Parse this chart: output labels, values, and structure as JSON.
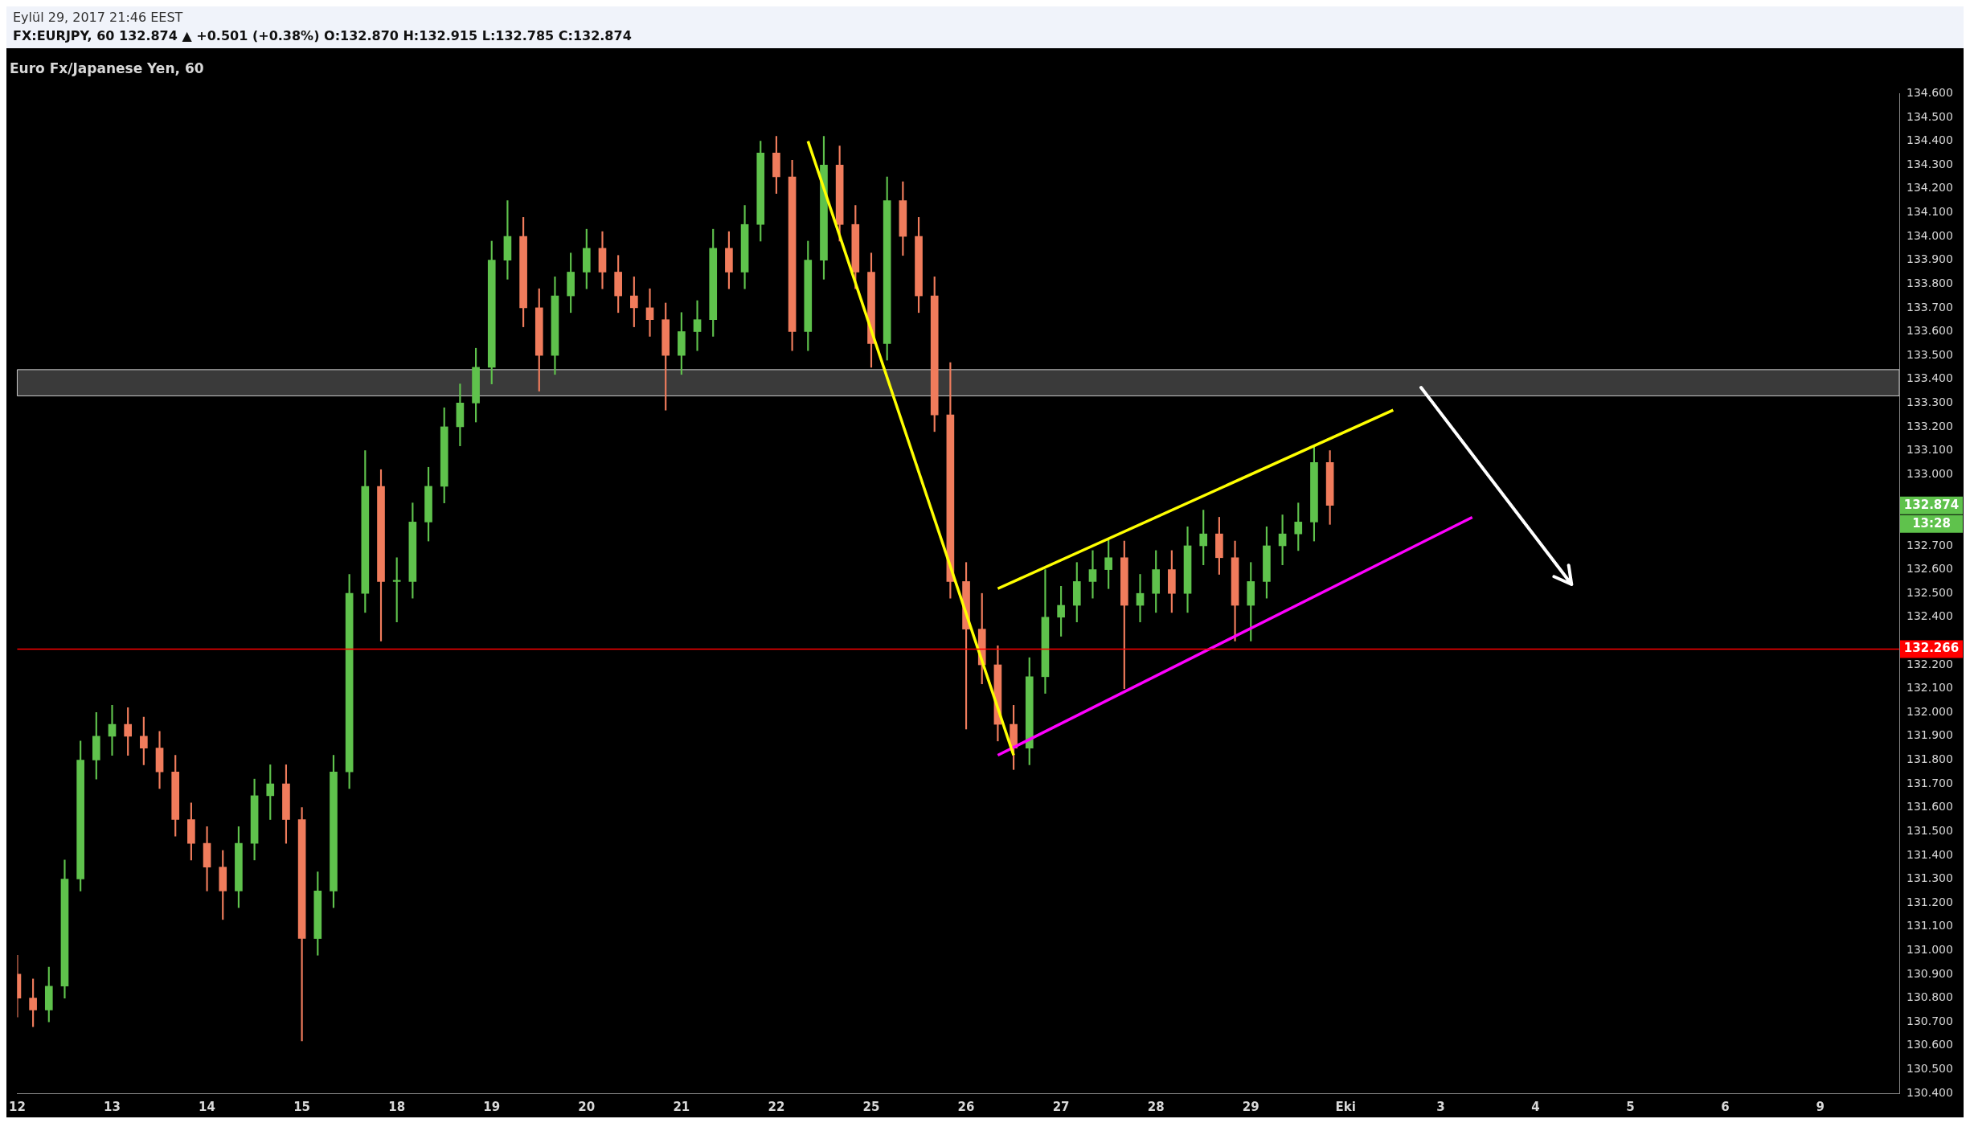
{
  "chart_data": {
    "type": "candlestick",
    "title": "Euro Fx/Japanese Yen, 60",
    "subtitle": "FX:EURJPY, 60  132.874 ▲ +0.501 (+0.38%) O:132.870 H:132.915 L:132.785 C:132.874",
    "annotations": [
      "Eylül 29, 2017 21:46 EEST",
      "132.874",
      "13:28"
    ],
    "categories": [
      "12",
      null,
      null,
      null,
      null,
      null,
      "13",
      null,
      null,
      null,
      null,
      null,
      "14",
      null,
      null,
      null,
      null,
      null,
      "15",
      null,
      null,
      null,
      null,
      null,
      "18",
      null,
      null,
      null,
      null,
      null,
      "19",
      null,
      null,
      null,
      null,
      null,
      "20",
      null,
      null,
      null,
      null,
      null,
      "21",
      null,
      null,
      null,
      null,
      null,
      "22",
      null,
      null,
      null,
      null,
      null,
      "25",
      null,
      null,
      null,
      null,
      null,
      "26",
      null,
      null,
      null,
      null,
      null,
      "27",
      null,
      null,
      null,
      null,
      null,
      "28",
      null,
      null,
      null,
      null,
      null,
      "29",
      null,
      null,
      null,
      null,
      null,
      "Eki",
      null,
      null,
      null,
      null,
      null,
      "3",
      null,
      null,
      null,
      null,
      null,
      "4",
      null,
      null,
      null,
      null,
      null,
      "5",
      null,
      null,
      null,
      null,
      null,
      "6",
      null,
      null,
      null,
      null,
      null,
      "9",
      null,
      null,
      null,
      null,
      null
    ],
    "ohlc": [
      [
        130.9,
        130.98,
        130.72,
        130.8
      ],
      [
        130.8,
        130.88,
        130.68,
        130.75
      ],
      [
        130.75,
        130.93,
        130.7,
        130.85
      ],
      [
        130.85,
        131.38,
        130.8,
        131.3
      ],
      [
        131.3,
        131.88,
        131.25,
        131.8
      ],
      [
        131.8,
        132.0,
        131.72,
        131.9
      ],
      [
        131.9,
        132.03,
        131.82,
        131.95
      ],
      [
        131.95,
        132.02,
        131.82,
        131.9
      ],
      [
        131.9,
        131.98,
        131.78,
        131.85
      ],
      [
        131.85,
        131.92,
        131.68,
        131.75
      ],
      [
        131.75,
        131.82,
        131.48,
        131.55
      ],
      [
        131.55,
        131.62,
        131.38,
        131.45
      ],
      [
        131.45,
        131.52,
        131.25,
        131.35
      ],
      [
        131.35,
        131.42,
        131.13,
        131.25
      ],
      [
        131.25,
        131.52,
        131.18,
        131.45
      ],
      [
        131.45,
        131.72,
        131.38,
        131.65
      ],
      [
        131.65,
        131.78,
        131.55,
        131.7
      ],
      [
        131.7,
        131.78,
        131.45,
        131.55
      ],
      [
        131.55,
        131.6,
        130.62,
        131.05
      ],
      [
        131.05,
        131.33,
        130.98,
        131.25
      ],
      [
        131.25,
        131.82,
        131.18,
        131.75
      ],
      [
        131.75,
        132.58,
        131.68,
        132.5
      ],
      [
        132.5,
        133.1,
        132.42,
        132.95
      ],
      [
        132.95,
        133.02,
        132.3,
        132.55
      ],
      [
        132.55,
        132.65,
        132.38,
        132.55
      ],
      [
        132.55,
        132.88,
        132.48,
        132.8
      ],
      [
        132.8,
        133.03,
        132.72,
        132.95
      ],
      [
        132.95,
        133.28,
        132.88,
        133.2
      ],
      [
        133.2,
        133.38,
        133.12,
        133.3
      ],
      [
        133.3,
        133.53,
        133.22,
        133.45
      ],
      [
        133.45,
        133.98,
        133.38,
        133.9
      ],
      [
        133.9,
        134.15,
        133.82,
        134.0
      ],
      [
        134.0,
        134.08,
        133.62,
        133.7
      ],
      [
        133.7,
        133.78,
        133.35,
        133.5
      ],
      [
        133.5,
        133.83,
        133.42,
        133.75
      ],
      [
        133.75,
        133.93,
        133.68,
        133.85
      ],
      [
        133.85,
        134.03,
        133.78,
        133.95
      ],
      [
        133.95,
        134.02,
        133.78,
        133.85
      ],
      [
        133.85,
        133.92,
        133.68,
        133.75
      ],
      [
        133.75,
        133.83,
        133.62,
        133.7
      ],
      [
        133.7,
        133.78,
        133.58,
        133.65
      ],
      [
        133.65,
        133.72,
        133.27,
        133.5
      ],
      [
        133.5,
        133.68,
        133.42,
        133.6
      ],
      [
        133.6,
        133.73,
        133.52,
        133.65
      ],
      [
        133.65,
        134.03,
        133.58,
        133.95
      ],
      [
        133.95,
        134.02,
        133.78,
        133.85
      ],
      [
        133.85,
        134.13,
        133.78,
        134.05
      ],
      [
        134.05,
        134.4,
        133.98,
        134.35
      ],
      [
        134.35,
        134.42,
        134.18,
        134.25
      ],
      [
        134.25,
        134.32,
        133.52,
        133.6
      ],
      [
        133.6,
        133.98,
        133.52,
        133.9
      ],
      [
        133.9,
        134.42,
        133.82,
        134.3
      ],
      [
        134.3,
        134.38,
        133.98,
        134.05
      ],
      [
        134.05,
        134.13,
        133.78,
        133.85
      ],
      [
        133.85,
        133.93,
        133.45,
        133.55
      ],
      [
        133.55,
        134.25,
        133.48,
        134.15
      ],
      [
        134.15,
        134.23,
        133.92,
        134.0
      ],
      [
        134.0,
        134.08,
        133.68,
        133.75
      ],
      [
        133.75,
        133.83,
        133.18,
        133.25
      ],
      [
        133.25,
        133.47,
        132.48,
        132.55
      ],
      [
        132.55,
        132.63,
        131.93,
        132.35
      ],
      [
        132.35,
        132.5,
        132.12,
        132.2
      ],
      [
        132.2,
        132.28,
        131.88,
        131.95
      ],
      [
        131.95,
        132.03,
        131.76,
        131.85
      ],
      [
        131.85,
        132.23,
        131.78,
        132.15
      ],
      [
        132.15,
        132.6,
        132.08,
        132.4
      ],
      [
        132.4,
        132.53,
        132.32,
        132.45
      ],
      [
        132.45,
        132.63,
        132.38,
        132.55
      ],
      [
        132.55,
        132.68,
        132.48,
        132.6
      ],
      [
        132.6,
        132.73,
        132.52,
        132.65
      ],
      [
        132.65,
        132.72,
        132.1,
        132.45
      ],
      [
        132.45,
        132.58,
        132.38,
        132.5
      ],
      [
        132.5,
        132.68,
        132.42,
        132.6
      ],
      [
        132.6,
        132.68,
        132.42,
        132.5
      ],
      [
        132.5,
        132.78,
        132.42,
        132.7
      ],
      [
        132.7,
        132.85,
        132.62,
        132.75
      ],
      [
        132.75,
        132.82,
        132.58,
        132.65
      ],
      [
        132.65,
        132.72,
        132.3,
        132.45
      ],
      [
        132.45,
        132.63,
        132.3,
        132.55
      ],
      [
        132.55,
        132.78,
        132.48,
        132.7
      ],
      [
        132.7,
        132.83,
        132.62,
        132.75
      ],
      [
        132.75,
        132.88,
        132.68,
        132.8
      ],
      [
        132.8,
        133.12,
        132.72,
        133.05
      ],
      [
        133.05,
        133.1,
        132.79,
        132.87
      ],
      null,
      null,
      null,
      null,
      null,
      null,
      null,
      null,
      null,
      null,
      null,
      null,
      null,
      null,
      null,
      null,
      null,
      null,
      null,
      null,
      null,
      null,
      null,
      null,
      null,
      null,
      null,
      null,
      null,
      null,
      null,
      null,
      null,
      null,
      null,
      null
    ],
    "series": [
      {
        "type": "line",
        "color": "#ffff00",
        "values": [
          null,
          null,
          null,
          null,
          null,
          null,
          null,
          null,
          null,
          null,
          null,
          null,
          null,
          null,
          null,
          null,
          null,
          null,
          null,
          null,
          null,
          null,
          null,
          null,
          null,
          null,
          null,
          null,
          null,
          null,
          null,
          null,
          null,
          null,
          null,
          null,
          null,
          null,
          null,
          null,
          null,
          null,
          null,
          null,
          null,
          null,
          null,
          null,
          null,
          null,
          134.4,
          null,
          null,
          null,
          null,
          null,
          null,
          null,
          null,
          null,
          null,
          null,
          null,
          131.82,
          null,
          null,
          null,
          null,
          null,
          null,
          null,
          null,
          null,
          null,
          null,
          null,
          null,
          null,
          null,
          null,
          null,
          null,
          null,
          null,
          null,
          null,
          null,
          null,
          null,
          null,
          null,
          null,
          null,
          null,
          null,
          null,
          null,
          null,
          null,
          null,
          null,
          null,
          null,
          null,
          null,
          null,
          null,
          null,
          null,
          null,
          null,
          null,
          null,
          null,
          null,
          null,
          null,
          null,
          null,
          null
        ]
      },
      {
        "type": "line",
        "color": "#ffff00",
        "values": [
          null,
          null,
          null,
          null,
          null,
          null,
          null,
          null,
          null,
          null,
          null,
          null,
          null,
          null,
          null,
          null,
          null,
          null,
          null,
          null,
          null,
          null,
          null,
          null,
          null,
          null,
          null,
          null,
          null,
          null,
          null,
          null,
          null,
          null,
          null,
          null,
          null,
          null,
          null,
          null,
          null,
          null,
          null,
          null,
          null,
          null,
          null,
          null,
          null,
          null,
          null,
          null,
          null,
          null,
          null,
          null,
          null,
          null,
          null,
          null,
          null,
          null,
          132.52,
          null,
          null,
          null,
          null,
          null,
          null,
          null,
          null,
          null,
          null,
          null,
          null,
          null,
          null,
          null,
          null,
          null,
          null,
          null,
          null,
          null,
          null,
          null,
          null,
          133.27,
          null,
          null,
          null,
          null,
          null,
          null,
          null,
          null,
          null,
          null,
          null,
          null,
          null,
          null,
          null,
          null,
          null,
          null,
          null,
          null,
          null,
          null,
          null,
          null,
          null,
          null,
          null,
          null,
          null,
          null,
          null,
          null
        ]
      },
      {
        "type": "line",
        "color": "#ff00ff",
        "values": [
          null,
          null,
          null,
          null,
          null,
          null,
          null,
          null,
          null,
          null,
          null,
          null,
          null,
          null,
          null,
          null,
          null,
          null,
          null,
          null,
          null,
          null,
          null,
          null,
          null,
          null,
          null,
          null,
          null,
          null,
          null,
          null,
          null,
          null,
          null,
          null,
          null,
          null,
          null,
          null,
          null,
          null,
          null,
          null,
          null,
          null,
          null,
          null,
          null,
          null,
          null,
          null,
          null,
          null,
          null,
          null,
          null,
          null,
          null,
          null,
          null,
          null,
          131.82,
          null,
          null,
          null,
          null,
          null,
          null,
          null,
          null,
          null,
          null,
          null,
          null,
          null,
          null,
          null,
          null,
          null,
          null,
          null,
          null,
          null,
          null,
          null,
          null,
          null,
          null,
          null,
          null,
          null,
          132.82,
          null,
          null,
          null,
          null,
          null,
          null,
          null,
          null,
          null,
          null,
          null,
          null,
          null,
          null,
          null,
          null,
          null,
          null,
          null,
          null,
          null,
          null,
          null,
          null,
          null,
          null,
          null
        ]
      }
    ],
    "ref_lines": [
      {
        "axis": "y",
        "value": 132.266,
        "label": "132.266",
        "color": "#ff0000"
      }
    ],
    "bands": [
      {
        "axis": "y",
        "from": 133.33,
        "to": 133.44,
        "color": "#3a3a3a"
      }
    ],
    "ylim": [
      130.4,
      134.6
    ],
    "yticks": [
      {
        "value": 130.4,
        "label": "130.400"
      },
      {
        "value": 130.5,
        "label": "130.500"
      },
      {
        "value": 130.6,
        "label": "130.600"
      },
      {
        "value": 130.7,
        "label": "130.700"
      },
      {
        "value": 130.8,
        "label": "130.800"
      },
      {
        "value": 130.9,
        "label": "130.900"
      },
      {
        "value": 131.0,
        "label": "131.000"
      },
      {
        "value": 131.1,
        "label": "131.100"
      },
      {
        "value": 131.2,
        "label": "131.200"
      },
      {
        "value": 131.3,
        "label": "131.300"
      },
      {
        "value": 131.4,
        "label": "131.400"
      },
      {
        "value": 131.5,
        "label": "131.500"
      },
      {
        "value": 131.6,
        "label": "131.600"
      },
      {
        "value": 131.7,
        "label": "131.700"
      },
      {
        "value": 131.8,
        "label": "131.800"
      },
      {
        "value": 131.9,
        "label": "131.900"
      },
      {
        "value": 132.0,
        "label": "132.000"
      },
      {
        "value": 132.1,
        "label": "132.100"
      },
      {
        "value": 132.2,
        "label": "132.200"
      },
      {
        "value": 132.4,
        "label": "132.400"
      },
      {
        "value": 132.5,
        "label": "132.500"
      },
      {
        "value": 132.6,
        "label": "132.600"
      },
      {
        "value": 132.7,
        "label": "132.700"
      },
      {
        "value": 133.0,
        "label": "133.000"
      },
      {
        "value": 133.1,
        "label": "133.100"
      },
      {
        "value": 133.2,
        "label": "133.200"
      },
      {
        "value": 133.3,
        "label": "133.300"
      },
      {
        "value": 133.4,
        "label": "133.400"
      },
      {
        "value": 133.5,
        "label": "133.500"
      },
      {
        "value": 133.6,
        "label": "133.600"
      },
      {
        "value": 133.7,
        "label": "133.700"
      },
      {
        "value": 133.8,
        "label": "133.800"
      },
      {
        "value": 133.9,
        "label": "133.900"
      },
      {
        "value": 134.0,
        "label": "134.000"
      },
      {
        "value": 134.1,
        "label": "134.100"
      },
      {
        "value": 134.2,
        "label": "134.200"
      },
      {
        "value": 134.3,
        "label": "134.300"
      },
      {
        "value": 134.4,
        "label": "134.400"
      },
      {
        "value": 134.5,
        "label": "134.500"
      },
      {
        "value": 134.6,
        "label": "134.600"
      }
    ]
  }
}
